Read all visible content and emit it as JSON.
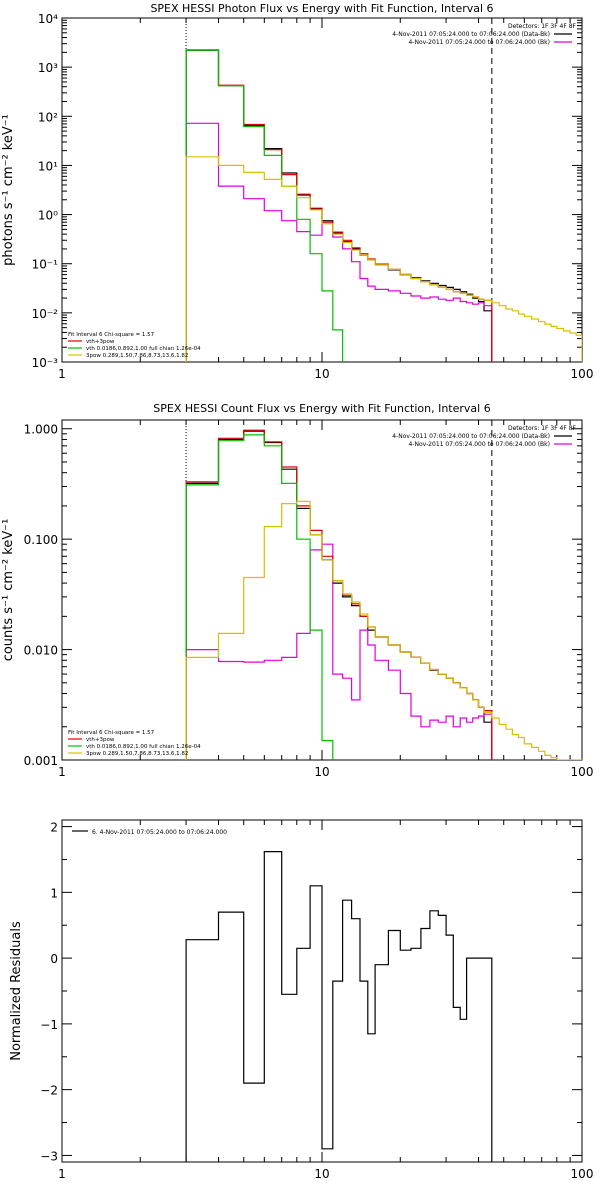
{
  "chart_data": [
    {
      "type": "line",
      "title": "SPEX HESSI Photon Flux vs Energy with Fit Function, Interval 6",
      "xlabel": "",
      "ylabel": "photons s⁻¹ cm⁻² keV⁻¹",
      "xscale": "log",
      "yscale": "log",
      "xlim": [
        1,
        100
      ],
      "ylim": [
        0.001,
        10000
      ],
      "xticks": [
        {
          "v": 1,
          "label": "1"
        },
        {
          "v": 10,
          "label": "10"
        },
        {
          "v": 100,
          "label": "100"
        }
      ],
      "yticks": [
        {
          "v": 0.001,
          "label": "10⁻³"
        },
        {
          "v": 0.01,
          "label": "10⁻²"
        },
        {
          "v": 0.1,
          "label": "10⁻¹"
        },
        {
          "v": 1,
          "label": "10⁰"
        },
        {
          "v": 10,
          "label": "10¹"
        },
        {
          "v": 100,
          "label": "10²"
        },
        {
          "v": 1000,
          "label": "10³"
        },
        {
          "v": 10000,
          "label": "10⁴"
        }
      ],
      "vlines": [
        {
          "x": 3,
          "style": "dotted"
        },
        {
          "x": 45,
          "style": "dashed"
        }
      ],
      "legend_top": [
        "Detectors: 1F 3F 4F 8F",
        "4-Nov-2011 07:05:24.000 to 07:06:24.000 (Data-Bk)",
        "4-Nov-2011 07:05:24.000 to 07:06:24.000 (Bk)"
      ],
      "legend_bottom": [
        "Fit Interval 6   Chi-square = 1.57",
        "vth+3pow",
        "vth 0.0186,0.892,1.00  full chian 1.26e-04",
        "3pow 0.289,1.50,7.86,8.73,13.6,1.82"
      ],
      "series": [
        {
          "name": "4-Nov-2011 07:05:24.000 to 07:06:24.000 (Data-Bk)",
          "color": "#000000",
          "edges": [
            3,
            4,
            5,
            6,
            7,
            8,
            9,
            10,
            11,
            12,
            13,
            14,
            15,
            16,
            18,
            20,
            22,
            24,
            26,
            28,
            30,
            32,
            34,
            36,
            38,
            40,
            42,
            45
          ],
          "values": [
            2200,
            420,
            65,
            22,
            7,
            2.5,
            1.3,
            0.75,
            0.42,
            0.28,
            0.2,
            0.15,
            0.12,
            0.095,
            0.075,
            0.06,
            0.052,
            0.045,
            0.04,
            0.036,
            0.033,
            0.03,
            0.027,
            0.024,
            0.02,
            0.017,
            0.011
          ]
        },
        {
          "name": "4-Nov-2011 07:05:24.000 to 07:06:24.000 (Bk)",
          "color": "#e000e0",
          "edges": [
            3,
            4,
            5,
            6,
            7,
            8,
            9,
            10,
            11,
            12,
            13,
            14,
            15,
            16,
            18,
            20,
            22,
            24,
            26,
            28,
            30,
            32,
            34,
            36,
            38,
            40,
            42,
            45
          ],
          "values": [
            72,
            3.8,
            2.1,
            1.2,
            0.75,
            0.45,
            0.38,
            0.7,
            0.35,
            0.2,
            0.11,
            0.05,
            0.035,
            0.03,
            0.028,
            0.025,
            0.022,
            0.02,
            0.021,
            0.019,
            0.018,
            0.02,
            0.017,
            0.016,
            0.015,
            0.016,
            0.014
          ]
        },
        {
          "name": "vth+3pow",
          "color": "#e00000",
          "edges": [
            3,
            4,
            5,
            6,
            7,
            8,
            9,
            10,
            11,
            12,
            13,
            14,
            15,
            16,
            18,
            20,
            22,
            24,
            26,
            28,
            30,
            32,
            34,
            36,
            38,
            40,
            42,
            45
          ],
          "values": [
            2250,
            430,
            68,
            21,
            6.5,
            2.6,
            1.35,
            0.7,
            0.44,
            0.3,
            0.21,
            0.16,
            0.125,
            0.098,
            0.077,
            0.061,
            0.05,
            0.043,
            0.037,
            0.033,
            0.03,
            0.027,
            0.025,
            0.023,
            0.021,
            0.019,
            0.018
          ]
        },
        {
          "name": "vth 0.0186,0.892,1.00  full chian 1.26e-04",
          "color": "#00c000",
          "edges": [
            3,
            4,
            5,
            6,
            7,
            8,
            9,
            10,
            11,
            12
          ],
          "values": [
            2220,
            420,
            62,
            16,
            3.8,
            0.8,
            0.16,
            0.028,
            0.0045
          ]
        },
        {
          "name": "3pow 0.289,1.50,7.86,8.73,13.6,1.82",
          "color": "#d8c000",
          "edges": [
            3,
            4,
            5,
            6,
            7,
            8,
            9,
            10,
            11,
            12,
            13,
            14,
            15,
            16,
            18,
            20,
            22,
            24,
            26,
            28,
            30,
            32,
            34,
            36,
            38,
            40,
            42,
            45,
            48,
            51,
            54,
            57,
            60,
            64,
            68,
            72,
            76,
            80,
            85,
            90,
            95,
            100
          ],
          "values": [
            15,
            10,
            7.2,
            5.2,
            3.8,
            2.2,
            1.25,
            0.65,
            0.4,
            0.27,
            0.19,
            0.15,
            0.12,
            0.095,
            0.077,
            0.061,
            0.05,
            0.043,
            0.037,
            0.033,
            0.03,
            0.027,
            0.025,
            0.023,
            0.021,
            0.019,
            0.018,
            0.016,
            0.014,
            0.012,
            0.011,
            0.0095,
            0.0085,
            0.0075,
            0.0066,
            0.0059,
            0.0053,
            0.0048,
            0.0043,
            0.0039,
            0.0035
          ]
        }
      ]
    },
    {
      "type": "line",
      "title": "SPEX HESSI Count Flux vs Energy with Fit Function, Interval 6",
      "xlabel": "",
      "ylabel": "counts s⁻¹ cm⁻² keV⁻¹",
      "xscale": "log",
      "yscale": "log",
      "xlim": [
        1,
        100
      ],
      "ylim": [
        0.001,
        1.2
      ],
      "xticks": [
        {
          "v": 1,
          "label": "1"
        },
        {
          "v": 10,
          "label": "10"
        },
        {
          "v": 100,
          "label": "100"
        }
      ],
      "yticks": [
        {
          "v": 0.001,
          "label": "0.001"
        },
        {
          "v": 0.01,
          "label": "0.010"
        },
        {
          "v": 0.1,
          "label": "0.100"
        },
        {
          "v": 1,
          "label": "1.000"
        }
      ],
      "vlines": [
        {
          "x": 3,
          "style": "dotted"
        },
        {
          "x": 45,
          "style": "dashed"
        }
      ],
      "legend_top": [
        "Detectors: 1F 3F 4F 8F",
        "4-Nov-2011 07:05:24.000 to 07:06:24.000 (Data-Bk)",
        "4-Nov-2011 07:05:24.000 to 07:06:24.000 (Bk)"
      ],
      "legend_bottom": [
        "Fit Interval 6   Chi-square = 1.57",
        "vth+3pow",
        "vth 0.0186,0.892,1.00  full chian 1.26e-04",
        "3pow 0.289,1.50,7.86,8.73,13.6,1.82"
      ],
      "series": [
        {
          "name": "4-Nov-2011 07:05:24.000 to 07:06:24.000 (Data-Bk)",
          "color": "#000000",
          "edges": [
            3,
            4,
            5,
            6,
            7,
            8,
            9,
            10,
            11,
            12,
            13,
            14,
            15,
            16,
            18,
            20,
            22,
            24,
            26,
            28,
            30,
            32,
            34,
            36,
            38,
            40,
            42,
            45
          ],
          "values": [
            0.32,
            0.8,
            0.95,
            0.75,
            0.43,
            0.19,
            0.11,
            0.065,
            0.04,
            0.03,
            0.025,
            0.02,
            0.015,
            0.013,
            0.011,
            0.0095,
            0.0085,
            0.0075,
            0.0065,
            0.006,
            0.0055,
            0.005,
            0.0045,
            0.004,
            0.0035,
            0.003,
            0.0022
          ]
        },
        {
          "name": "4-Nov-2011 07:05:24.000 to 07:06:24.000 (Bk)",
          "color": "#e000e0",
          "edges": [
            3,
            4,
            5,
            6,
            7,
            8,
            9,
            10,
            11,
            12,
            13,
            14,
            15,
            16,
            18,
            20,
            22,
            24,
            26,
            28,
            30,
            32,
            34,
            36,
            38,
            40,
            42,
            45
          ],
          "values": [
            0.01,
            0.0078,
            0.0077,
            0.008,
            0.0085,
            0.014,
            0.08,
            0.09,
            0.006,
            0.0055,
            0.0035,
            0.015,
            0.011,
            0.008,
            0.0065,
            0.004,
            0.0025,
            0.002,
            0.0023,
            0.0022,
            0.0025,
            0.002,
            0.0024,
            0.0022,
            0.0024,
            0.0025,
            0.0026
          ]
        },
        {
          "name": "vth+3pow",
          "color": "#e00000",
          "edges": [
            3,
            4,
            5,
            6,
            7,
            8,
            9,
            10,
            11,
            12,
            13,
            14,
            15,
            16,
            18,
            20,
            22,
            24,
            26,
            28,
            30,
            32,
            34,
            36,
            38,
            40,
            42,
            45
          ],
          "values": [
            0.33,
            0.82,
            0.97,
            0.76,
            0.45,
            0.2,
            0.12,
            0.07,
            0.042,
            0.031,
            0.026,
            0.02,
            0.016,
            0.013,
            0.011,
            0.0095,
            0.0085,
            0.0075,
            0.0066,
            0.006,
            0.0055,
            0.005,
            0.0045,
            0.004,
            0.0035,
            0.003,
            0.0028
          ]
        },
        {
          "name": "vth 0.0186,0.892,1.00  full chian 1.26e-04",
          "color": "#00c000",
          "edges": [
            3,
            4,
            5,
            6,
            7,
            8,
            9,
            10,
            11
          ],
          "values": [
            0.31,
            0.78,
            0.88,
            0.7,
            0.32,
            0.1,
            0.015,
            0.0015
          ]
        },
        {
          "name": "3pow 0.289,1.50,7.86,8.73,13.6,1.82",
          "color": "#d8c000",
          "edges": [
            3,
            4,
            5,
            6,
            7,
            8,
            9,
            10,
            11,
            12,
            13,
            14,
            15,
            16,
            18,
            20,
            22,
            24,
            26,
            28,
            30,
            32,
            34,
            36,
            38,
            40,
            42,
            45,
            48,
            51,
            54,
            57,
            60,
            64,
            68,
            72,
            76,
            80,
            85,
            90,
            95,
            100
          ],
          "values": [
            0.0085,
            0.014,
            0.045,
            0.13,
            0.21,
            0.22,
            0.11,
            0.065,
            0.042,
            0.032,
            0.027,
            0.021,
            0.016,
            0.013,
            0.011,
            0.0095,
            0.0085,
            0.0075,
            0.0066,
            0.006,
            0.0055,
            0.005,
            0.0045,
            0.004,
            0.0035,
            0.003,
            0.0027,
            0.0024,
            0.0021,
            0.0019,
            0.0017,
            0.0016,
            0.0014,
            0.0013,
            0.0012,
            0.0011,
            0.00105,
            0.001,
            0.001,
            0.001,
            0.001
          ]
        }
      ]
    },
    {
      "type": "line",
      "title": "",
      "xlabel": "",
      "ylabel": "Normalized Residuals",
      "xscale": "log",
      "yscale": "linear",
      "xlim": [
        1,
        100
      ],
      "ylim": [
        -3.1,
        2.1
      ],
      "xticks": [
        {
          "v": 1,
          "label": "1"
        },
        {
          "v": 10,
          "label": "10"
        },
        {
          "v": 100,
          "label": "100"
        }
      ],
      "yticks": [
        {
          "v": -3,
          "label": "−3"
        },
        {
          "v": -2,
          "label": "−2"
        },
        {
          "v": -1,
          "label": "−1"
        },
        {
          "v": 0,
          "label": "0"
        },
        {
          "v": 1,
          "label": "1"
        },
        {
          "v": 2,
          "label": "2"
        }
      ],
      "legend_top": [
        "6. 4-Nov-2011 07:05:24.000 to 07:06:24.000"
      ],
      "series": [
        {
          "name": "6. 4-Nov-2011 07:05:24.000 to 07:06:24.000",
          "color": "#000000",
          "edges": [
            3,
            4,
            5,
            6,
            7,
            8,
            9,
            10,
            11,
            12,
            13,
            14,
            15,
            16,
            18,
            20,
            22,
            24,
            26,
            28,
            30,
            32,
            34,
            36,
            38,
            40,
            42,
            45
          ],
          "values": [
            0.28,
            0.7,
            -1.9,
            1.62,
            -0.55,
            0.15,
            1.1,
            -2.9,
            -0.35,
            0.88,
            0.6,
            -0.35,
            -1.15,
            -0.1,
            0.42,
            0.12,
            0.15,
            0.45,
            0.72,
            0.65,
            0.35,
            -0.75,
            -0.93,
            0,
            0,
            0,
            0
          ]
        }
      ]
    }
  ]
}
